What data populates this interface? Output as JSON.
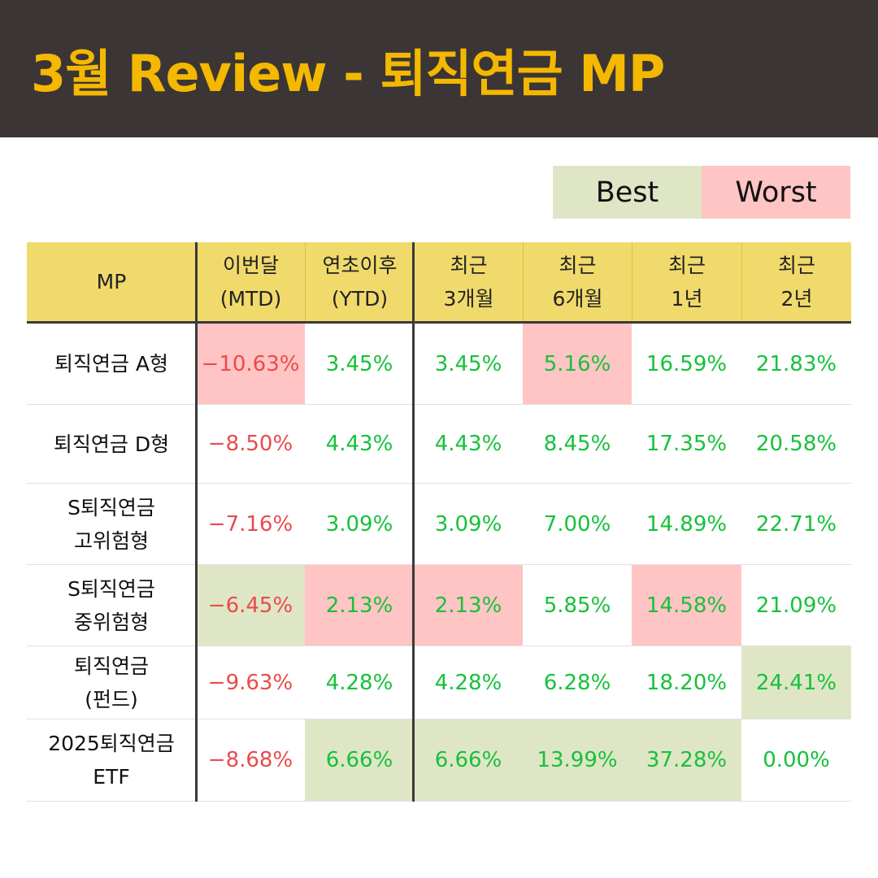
{
  "title": "3월 Review - 퇴직연금 MP",
  "legend": {
    "best": "Best",
    "worst": "Worst"
  },
  "colors": {
    "header_bg": "#3b3635",
    "title": "#f5b800",
    "table_header": "#f1da6c",
    "best": "#dfe6c6",
    "worst": "#ffc4c4",
    "negative": "#ea4b4b",
    "positive": "#16c13c"
  },
  "headers": [
    {
      "l1": "MP",
      "l2": ""
    },
    {
      "l1": "이번달",
      "l2": "(MTD)"
    },
    {
      "l1": "연초이후",
      "l2": "(YTD)"
    },
    {
      "l1": "최근",
      "l2": "3개월"
    },
    {
      "l1": "최근",
      "l2": "6개월"
    },
    {
      "l1": "최근",
      "l2": "1년"
    },
    {
      "l1": "최근",
      "l2": "2년"
    }
  ],
  "rows": [
    {
      "l1": "퇴직연금 A형",
      "l2": "",
      "values": [
        "-10.63%",
        "3.45%",
        "3.45%",
        "5.16%",
        "16.59%",
        "21.83%"
      ],
      "highlight": [
        "worst",
        "",
        "",
        "worst",
        "",
        ""
      ]
    },
    {
      "l1": "퇴직연금 D형",
      "l2": "",
      "values": [
        "-8.50%",
        "4.43%",
        "4.43%",
        "8.45%",
        "17.35%",
        "20.58%"
      ],
      "highlight": [
        "",
        "",
        "",
        "",
        "",
        ""
      ]
    },
    {
      "l1": "S퇴직연금",
      "l2": "고위험형",
      "values": [
        "-7.16%",
        "3.09%",
        "3.09%",
        "7.00%",
        "14.89%",
        "22.71%"
      ],
      "highlight": [
        "",
        "",
        "",
        "",
        "",
        ""
      ]
    },
    {
      "l1": "S퇴직연금",
      "l2": "중위험형",
      "values": [
        "-6.45%",
        "2.13%",
        "2.13%",
        "5.85%",
        "14.58%",
        "21.09%"
      ],
      "highlight": [
        "best",
        "worst",
        "worst",
        "",
        "worst",
        ""
      ]
    },
    {
      "l1": "퇴직연금",
      "l2": "(펀드)",
      "values": [
        "-9.63%",
        "4.28%",
        "4.28%",
        "6.28%",
        "18.20%",
        "24.41%"
      ],
      "highlight": [
        "",
        "",
        "",
        "",
        "",
        "best"
      ]
    },
    {
      "l1": "2025퇴직연금",
      "l2": "ETF",
      "values": [
        "-8.68%",
        "6.66%",
        "6.66%",
        "13.99%",
        "37.28%",
        "0.00%"
      ],
      "highlight": [
        "",
        "best",
        "best",
        "best",
        "best",
        ""
      ]
    }
  ]
}
